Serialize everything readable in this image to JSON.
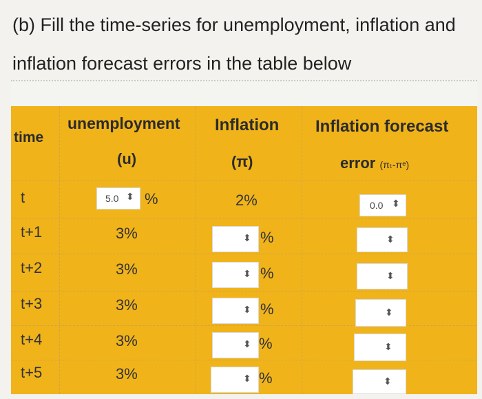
{
  "question": {
    "line1": "(b) Fill the time-series for unemployment, inflation and",
    "line2": "inflation forecast errors in the table below"
  },
  "table": {
    "headers": {
      "time": "time",
      "unemployment": "unemployment",
      "unemployment_sym": "(u)",
      "inflation": "Inflation",
      "inflation_sym": "(π)",
      "forecast": "Inflation forecast",
      "error_prefix": "error",
      "error_formula": "(πₜ-πᵉ)"
    },
    "rows": [
      {
        "time": "t",
        "unemployment": "5.0",
        "unemployment_pct": "%",
        "inflation": "2%",
        "error": "0.0"
      },
      {
        "time": "t+1",
        "unemployment": "3%",
        "inflation_pct": "%",
        "error": ""
      },
      {
        "time": "t+2",
        "unemployment": "3%",
        "inflation_pct": "%",
        "error": ""
      },
      {
        "time": "t+3",
        "unemployment": "3%",
        "inflation_pct": "%",
        "error": ""
      },
      {
        "time": "t+4",
        "unemployment": "3%",
        "inflation_pct": "%",
        "error": ""
      },
      {
        "time": "t+5",
        "unemployment": "3%",
        "inflation_pct": "%",
        "error": ""
      }
    ],
    "spinner_glyph": "⬍"
  }
}
